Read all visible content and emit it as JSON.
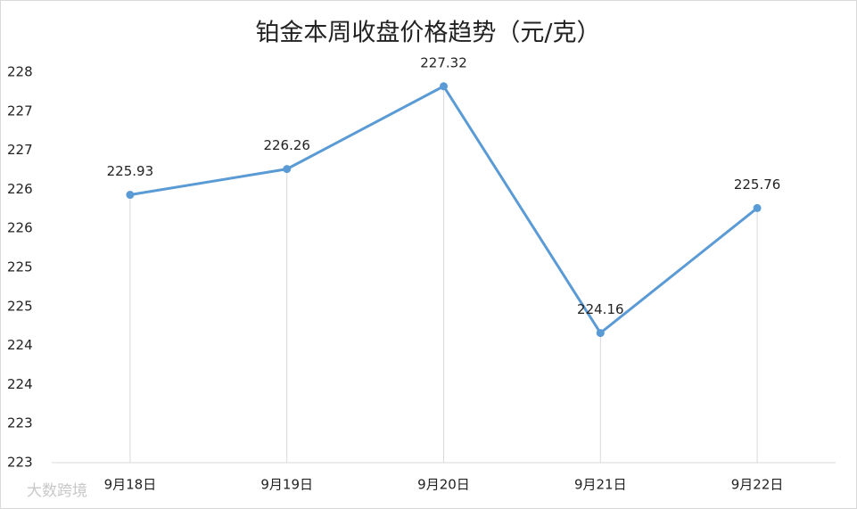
{
  "chart_data": {
    "type": "line",
    "title": "铂金本周收盘价格趋势（元/克）",
    "categories": [
      "9月18日",
      "9月19日",
      "9月20日",
      "9月21日",
      "9月22日"
    ],
    "values": [
      225.93,
      226.26,
      227.32,
      224.16,
      225.76
    ],
    "color": "#5b9bd5",
    "data_labels": true,
    "drop_lines": true,
    "ylim": [
      222.5,
      227.5
    ],
    "yticks": [
      {
        "value": 222.5,
        "label": "223"
      },
      223,
      {
        "value": 223.5,
        "label": "224"
      },
      224,
      {
        "value": 224.5,
        "label": "225"
      },
      225,
      {
        "value": 225.5,
        "label": "226"
      },
      226,
      {
        "value": 226.5,
        "label": "227"
      },
      227,
      {
        "value": 227.5,
        "label": "228"
      }
    ],
    "watermark": "大数跨境"
  }
}
